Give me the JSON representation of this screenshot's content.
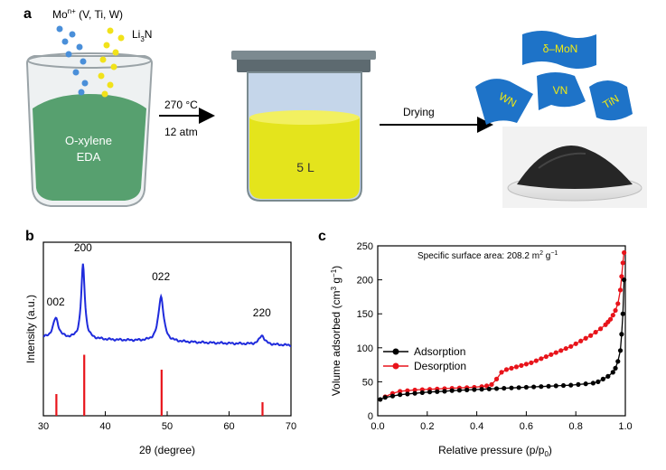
{
  "panel_a": {
    "label": "a",
    "ions_label": "Mo",
    "ions_sup": "n+",
    "ions_rest": " (V, Ti, W)",
    "li_label": "Li",
    "li_sub": "3",
    "li_rest": "N",
    "beaker_line1": "O-xylene",
    "beaker_line2": "EDA",
    "arrow1_line1": "270 °C",
    "arrow1_line2": "12 atm",
    "reactor_label": "5 L",
    "arrow2_label": "Drying",
    "sheets": [
      "δ–MoN",
      "WN",
      "VN",
      "TiN"
    ]
  },
  "chart_data": [
    {
      "panel": "b",
      "type": "line",
      "xlabel": "2θ (degree)",
      "ylabel": "Intensity (a.u.)",
      "xlim": [
        30,
        70
      ],
      "xticks": [
        30,
        40,
        50,
        60,
        70
      ],
      "grid": false,
      "peaks": [
        {
          "label": "002",
          "x": 32.0,
          "y": 0.22
        },
        {
          "label": "200",
          "x": 36.4,
          "y": 0.82
        },
        {
          "label": "022",
          "x": 49.0,
          "y": 0.5
        },
        {
          "label": "220",
          "x": 65.3,
          "y": 0.1
        }
      ],
      "reference_lines": [
        {
          "x": 32.1,
          "height": 0.16
        },
        {
          "x": 36.6,
          "height": 0.45
        },
        {
          "x": 49.1,
          "height": 0.34
        },
        {
          "x": 65.4,
          "height": 0.1
        }
      ],
      "series_color": "#1f2bdc",
      "reference_color": "#e8141b"
    },
    {
      "panel": "c",
      "type": "line",
      "annotation": "Specific  surface area: 208.2 m² g⁻¹",
      "xlabel": "Relative pressure (p/p₀)",
      "ylabel": "Volume adsorbed (cm³ g⁻¹)",
      "xlim": [
        0.0,
        1.0
      ],
      "ylim": [
        0,
        250
      ],
      "xticks": [
        "0.0",
        "0.2",
        "0.4",
        "0.6",
        "0.8",
        "1.0"
      ],
      "yticks": [
        "0",
        "50",
        "100",
        "150",
        "200",
        "250"
      ],
      "legend_position": "middle-left",
      "series": [
        {
          "name": "Adsorption",
          "color": "#000000",
          "x": [
            0.01,
            0.03,
            0.06,
            0.09,
            0.12,
            0.15,
            0.18,
            0.21,
            0.24,
            0.27,
            0.3,
            0.33,
            0.36,
            0.39,
            0.42,
            0.45,
            0.48,
            0.51,
            0.54,
            0.57,
            0.6,
            0.63,
            0.66,
            0.69,
            0.72,
            0.75,
            0.78,
            0.81,
            0.84,
            0.87,
            0.89,
            0.91,
            0.93,
            0.95,
            0.96,
            0.97,
            0.98,
            0.985,
            0.99,
            0.995
          ],
          "y": [
            24,
            27,
            29,
            31,
            32,
            33,
            34,
            35,
            35.5,
            36,
            37,
            37.5,
            38,
            38.5,
            39,
            39.5,
            40,
            40.5,
            41,
            41.5,
            42,
            42.5,
            43,
            43.5,
            44,
            44.5,
            45,
            46,
            47,
            48,
            50,
            54,
            58,
            64,
            70,
            80,
            96,
            120,
            150,
            200
          ]
        },
        {
          "name": "Desorption",
          "color": "#e8141b",
          "x": [
            0.995,
            0.99,
            0.985,
            0.98,
            0.97,
            0.96,
            0.95,
            0.94,
            0.93,
            0.92,
            0.9,
            0.88,
            0.86,
            0.84,
            0.82,
            0.8,
            0.78,
            0.76,
            0.74,
            0.72,
            0.7,
            0.68,
            0.66,
            0.64,
            0.62,
            0.6,
            0.58,
            0.56,
            0.54,
            0.52,
            0.5,
            0.48,
            0.46,
            0.44,
            0.42,
            0.39,
            0.36,
            0.33,
            0.3,
            0.27,
            0.24,
            0.21,
            0.18,
            0.15,
            0.12,
            0.09,
            0.06,
            0.03
          ],
          "y": [
            240,
            225,
            205,
            185,
            165,
            155,
            148,
            142,
            138,
            134,
            128,
            123,
            118,
            114,
            110,
            106,
            102,
            99,
            96,
            93,
            90,
            87,
            84,
            81,
            78,
            76,
            74,
            72,
            70,
            68,
            64,
            54,
            46,
            44,
            43,
            42,
            41.5,
            41,
            40.5,
            40,
            39.5,
            39,
            38.5,
            38,
            37,
            36,
            33,
            28
          ]
        }
      ]
    }
  ]
}
